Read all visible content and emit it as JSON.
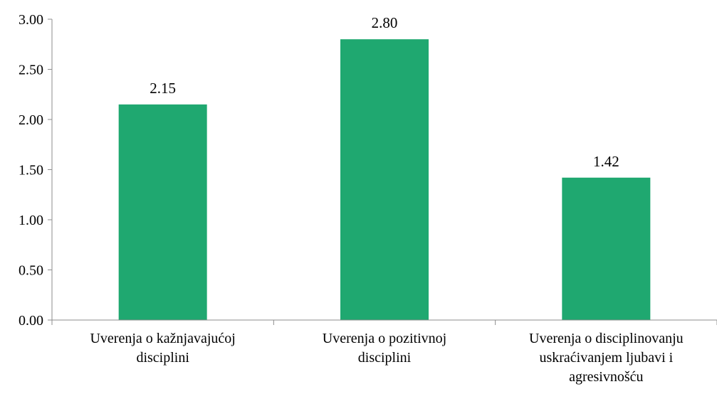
{
  "chart_data": {
    "type": "bar",
    "categories": [
      [
        "Uverenja o kažnjavajućoj",
        "disciplini"
      ],
      [
        "Uverenja o pozitivnoj",
        "disciplini"
      ],
      [
        "Uverenja o disciplinovanju",
        "uskraćivanjem ljubavi i",
        "agresivnošću"
      ]
    ],
    "values": [
      2.15,
      2.8,
      1.42
    ],
    "value_labels": [
      "2.15",
      "2.80",
      "1.42"
    ],
    "ylim": [
      0,
      3
    ],
    "yticks": [
      "0.00",
      "0.50",
      "1.00",
      "1.50",
      "2.00",
      "2.50",
      "3.00"
    ],
    "ytick_values": [
      0,
      0.5,
      1,
      1.5,
      2,
      2.5,
      3
    ],
    "grid": false,
    "bar_color": "#1fa870",
    "axis_color": "#8c8c8c"
  }
}
